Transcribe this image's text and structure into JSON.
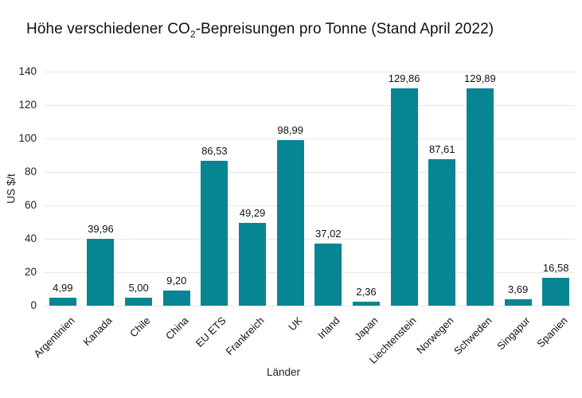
{
  "title": {
    "prefix": "Höhe verschiedener CO",
    "subscript": "2",
    "suffix": "-Bepreisungen pro Tonne (Stand April 2022)"
  },
  "colors": {
    "bar": "#088593",
    "gridline": "#e7e7e7",
    "text": "#111111",
    "background": "#ffffff"
  },
  "chart_data": {
    "type": "bar",
    "title": "Höhe verschiedener CO2-Bepreisungen pro Tonne (Stand April 2022)",
    "xlabel": "Länder",
    "ylabel": "US $/t",
    "ylim": [
      0,
      140
    ],
    "yticks": [
      0,
      20,
      40,
      60,
      80,
      100,
      120,
      140
    ],
    "grid": "horizontal",
    "legend": "none",
    "categories": [
      "Argentinien",
      "Kanada",
      "Chile",
      "China",
      "EU ETS",
      "Frankreich",
      "UK",
      "Irland",
      "Japan",
      "Liechtenstein",
      "Norwegen",
      "Schweden",
      "Singapur",
      "Spanien"
    ],
    "values": [
      4.99,
      39.96,
      5.0,
      9.2,
      86.53,
      49.29,
      98.99,
      37.02,
      2.36,
      129.86,
      87.61,
      129.89,
      3.69,
      16.58
    ],
    "value_labels": [
      "4,99",
      "39,96",
      "5,00",
      "9,20",
      "86,53",
      "49,29",
      "98,99",
      "37,02",
      "2,36",
      "129,86",
      "87,61",
      "129,89",
      "3,69",
      "16,58"
    ]
  }
}
